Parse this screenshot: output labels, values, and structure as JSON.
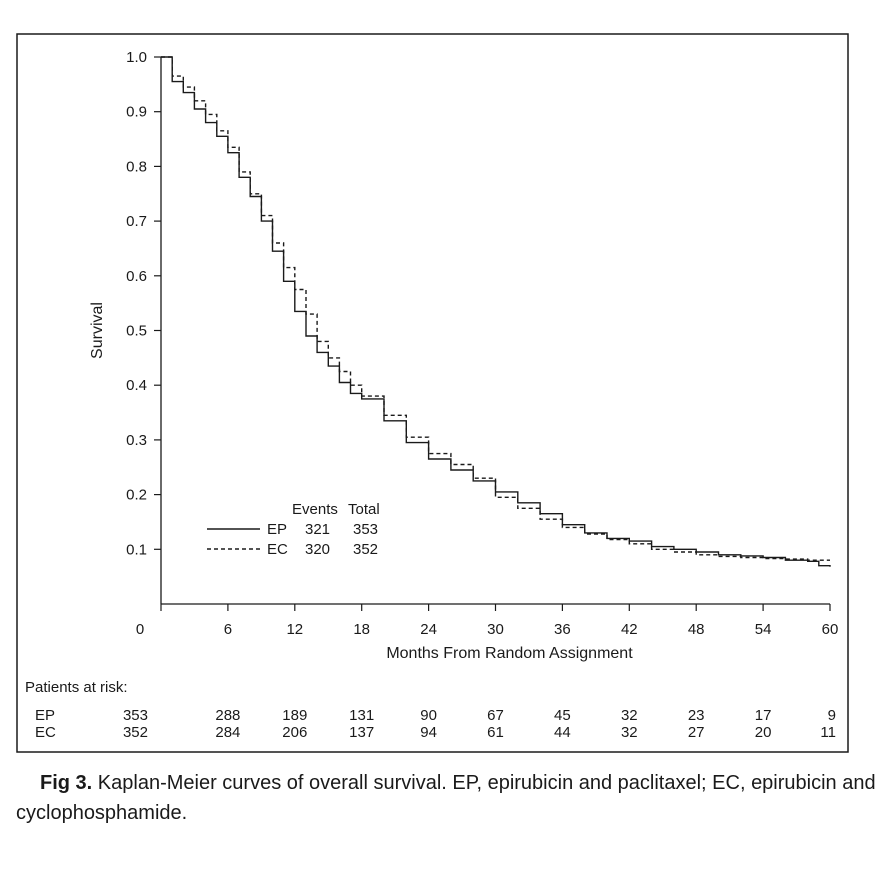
{
  "chart_data": {
    "type": "line",
    "xlabel": "Months From Random Assignment",
    "ylabel": "Survival",
    "xlim": [
      0,
      60
    ],
    "ylim": [
      0,
      1.0
    ],
    "x_ticks": [
      0,
      6,
      12,
      18,
      24,
      30,
      36,
      42,
      48,
      54,
      60
    ],
    "y_ticks": [
      "1.0",
      "0.9",
      "0.8",
      "0.7",
      "0.6",
      "0.5",
      "0.4",
      "0.3",
      "0.2",
      "0.1"
    ],
    "grid": false,
    "legend": {
      "placement": "lower-left",
      "header_events": "Events",
      "header_total": "Total",
      "entries": [
        {
          "name": "EP",
          "events": "321",
          "total": "353",
          "style": "solid"
        },
        {
          "name": "EC",
          "events": "320",
          "total": "352",
          "style": "dashed"
        }
      ]
    },
    "series": [
      {
        "name": "EP",
        "style": "solid",
        "x": [
          0,
          1,
          2,
          3,
          4,
          5,
          6,
          7,
          8,
          9,
          10,
          11,
          12,
          13,
          14,
          15,
          16,
          17,
          18,
          20,
          22,
          24,
          26,
          28,
          30,
          32,
          34,
          36,
          38,
          40,
          42,
          44,
          46,
          48,
          50,
          52,
          54,
          56,
          58,
          59,
          60
        ],
        "y": [
          1.0,
          0.955,
          0.935,
          0.905,
          0.88,
          0.855,
          0.825,
          0.78,
          0.745,
          0.7,
          0.645,
          0.59,
          0.535,
          0.49,
          0.46,
          0.435,
          0.405,
          0.385,
          0.375,
          0.335,
          0.295,
          0.265,
          0.245,
          0.225,
          0.205,
          0.185,
          0.165,
          0.145,
          0.13,
          0.12,
          0.115,
          0.105,
          0.1,
          0.095,
          0.09,
          0.088,
          0.085,
          0.08,
          0.078,
          0.07,
          0.068
        ]
      },
      {
        "name": "EC",
        "style": "dashed",
        "x": [
          0,
          1,
          2,
          3,
          4,
          5,
          6,
          7,
          8,
          9,
          10,
          11,
          12,
          13,
          14,
          15,
          16,
          17,
          18,
          20,
          22,
          24,
          26,
          28,
          30,
          32,
          34,
          36,
          38,
          40,
          42,
          44,
          46,
          48,
          50,
          52,
          54,
          56,
          58,
          60
        ],
        "y": [
          1.0,
          0.965,
          0.945,
          0.92,
          0.895,
          0.865,
          0.835,
          0.79,
          0.75,
          0.71,
          0.66,
          0.615,
          0.575,
          0.53,
          0.48,
          0.45,
          0.425,
          0.4,
          0.38,
          0.345,
          0.305,
          0.275,
          0.255,
          0.23,
          0.195,
          0.175,
          0.155,
          0.14,
          0.128,
          0.118,
          0.11,
          0.1,
          0.095,
          0.09,
          0.087,
          0.085,
          0.083,
          0.082,
          0.08,
          0.08
        ]
      }
    ]
  },
  "risk_table": {
    "title": "Patients at risk:",
    "x": [
      0,
      6,
      12,
      18,
      24,
      30,
      36,
      42,
      48,
      54,
      60
    ],
    "rows": [
      {
        "name": "EP",
        "values": [
          "353",
          "288",
          "189",
          "131",
          "90",
          "67",
          "45",
          "32",
          "23",
          "17",
          "9"
        ]
      },
      {
        "name": "EC",
        "values": [
          "352",
          "284",
          "206",
          "137",
          "94",
          "61",
          "44",
          "32",
          "27",
          "20",
          "11"
        ]
      }
    ]
  },
  "caption": {
    "label": "Fig 3.",
    "text": " Kaplan-Meier curves of overall survival. EP, epirubicin and paclitaxel; EC, epirubicin and cyclophosphamide."
  },
  "colors": {
    "ink": "#1a1a1a",
    "background": "#ffffff"
  }
}
